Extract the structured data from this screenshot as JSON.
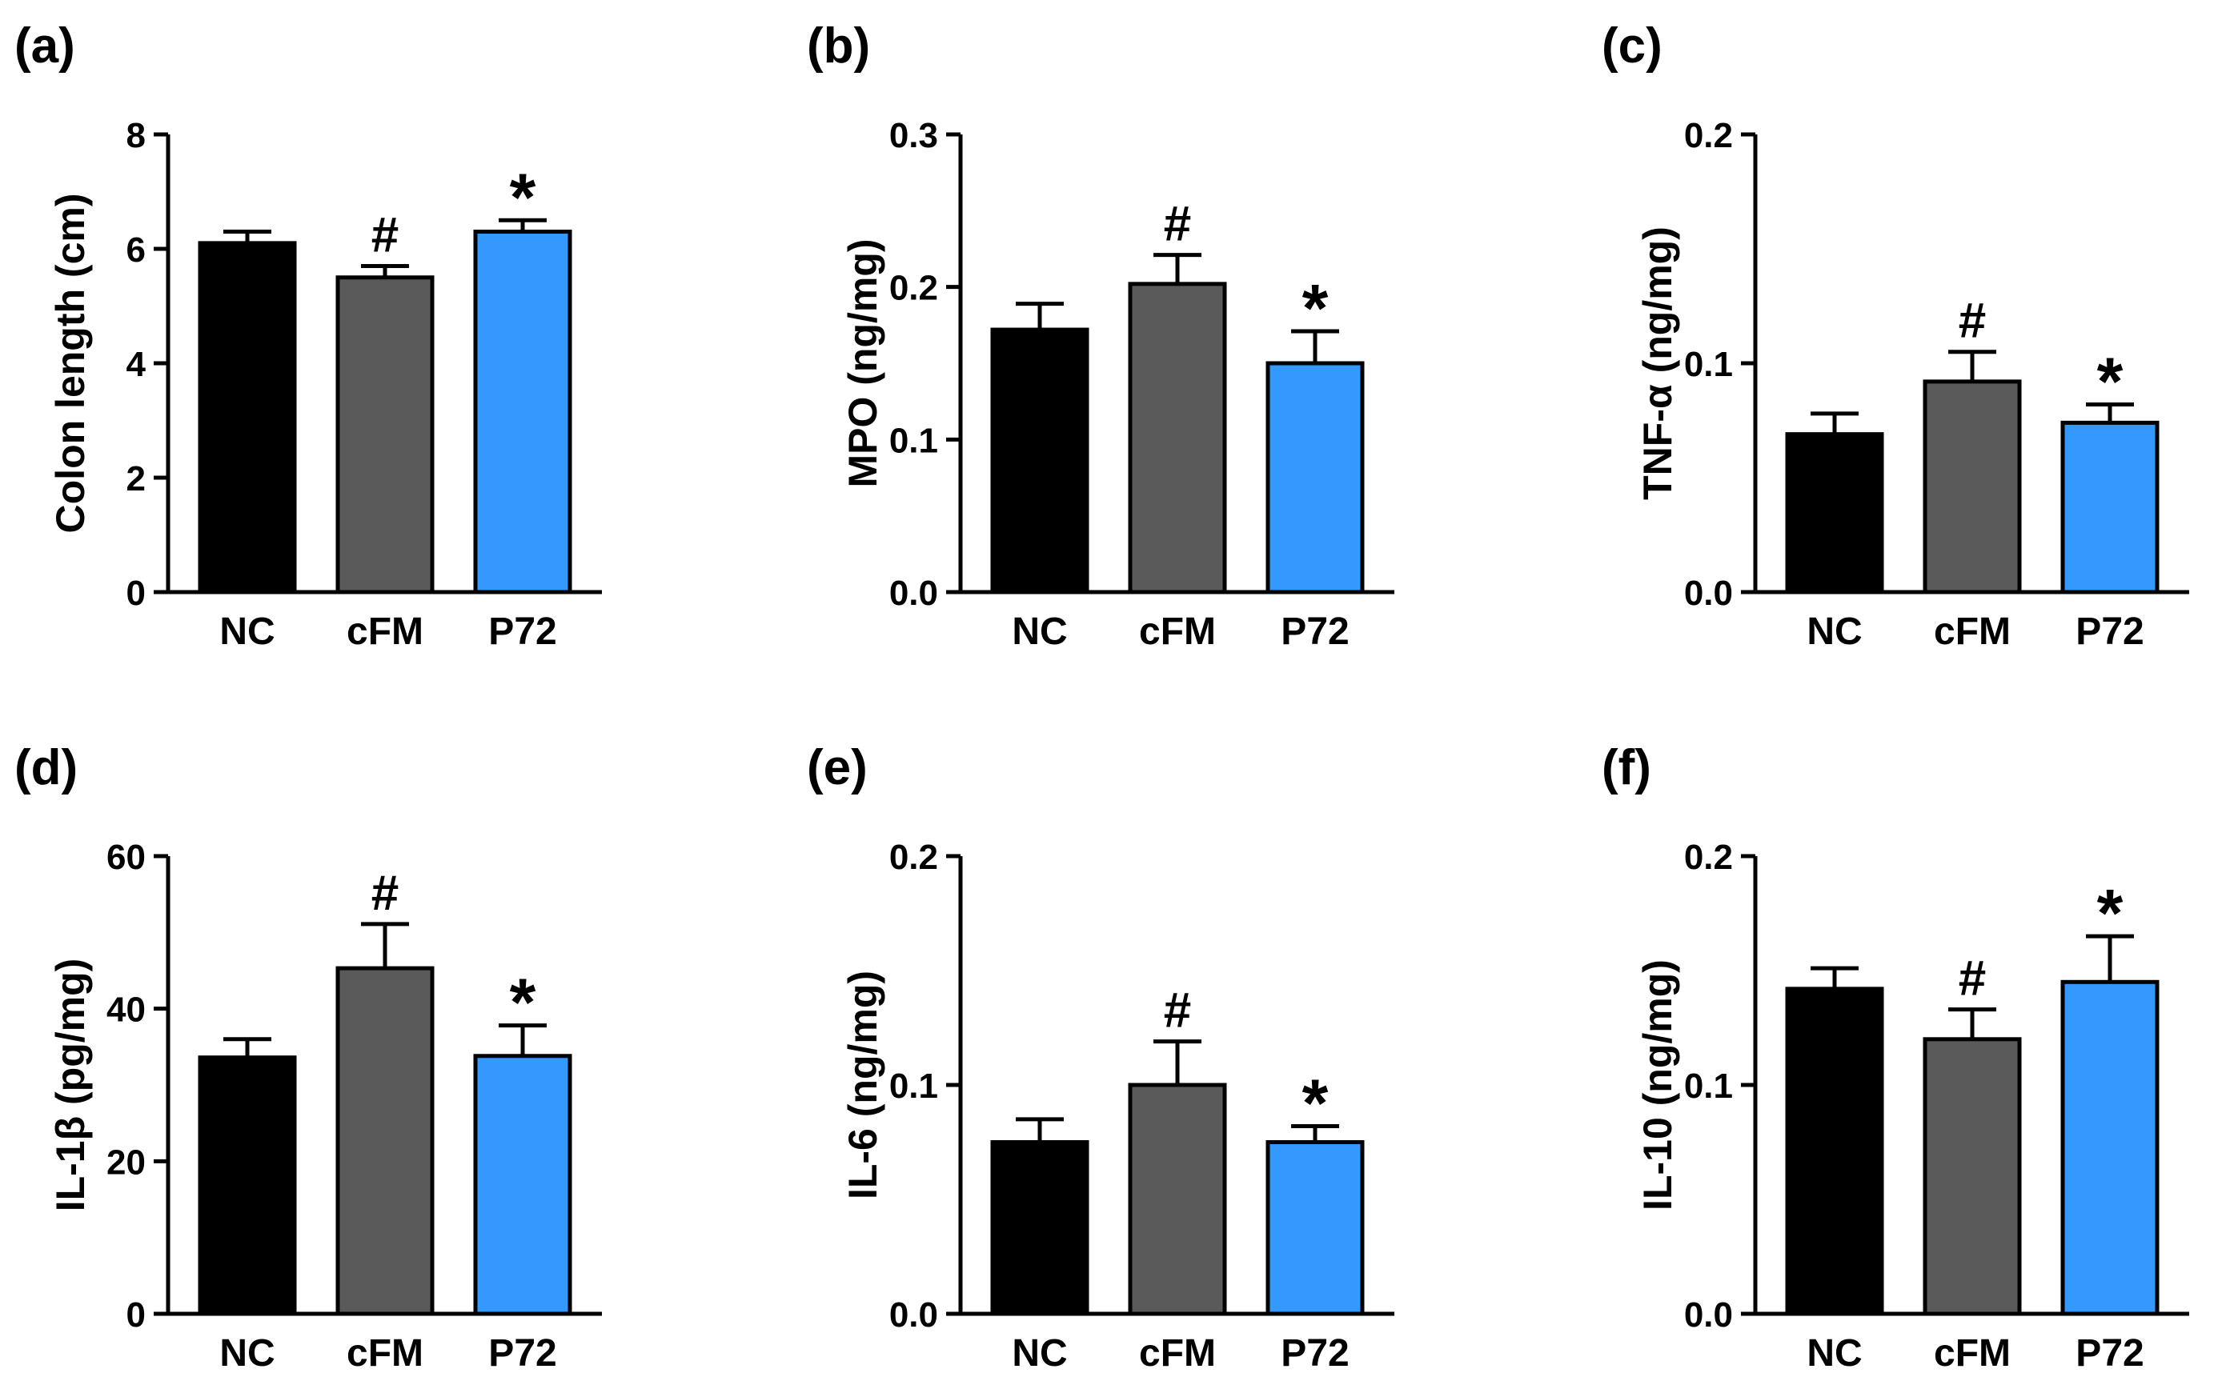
{
  "figure": {
    "background": "#ffffff"
  },
  "chart_data": [
    {
      "panel": "(a)",
      "type": "bar",
      "categories": [
        "NC",
        "cFM",
        "P72"
      ],
      "colors": [
        "#000000",
        "#5a5a5a",
        "#3399ff"
      ],
      "values": [
        6.1,
        5.5,
        6.3
      ],
      "errors": [
        0.2,
        0.2,
        0.2
      ],
      "markers": [
        "",
        "#",
        "*"
      ],
      "ylabel": "Colon length (cm)",
      "ylim": [
        0,
        8
      ],
      "yticks": [
        "0",
        "2",
        "4",
        "6",
        "8"
      ]
    },
    {
      "panel": "(b)",
      "type": "bar",
      "categories": [
        "NC",
        "cFM",
        "P72"
      ],
      "colors": [
        "#000000",
        "#5a5a5a",
        "#3399ff"
      ],
      "values": [
        0.172,
        0.202,
        0.15
      ],
      "errors": [
        0.017,
        0.019,
        0.021
      ],
      "markers": [
        "",
        "#",
        "*"
      ],
      "ylabel": "MPO (ng/mg)",
      "ylim": [
        0,
        0.3
      ],
      "yticks": [
        "0.0",
        "0.1",
        "0.2",
        "0.3"
      ]
    },
    {
      "panel": "(c)",
      "type": "bar",
      "categories": [
        "NC",
        "cFM",
        "P72"
      ],
      "colors": [
        "#000000",
        "#5a5a5a",
        "#3399ff"
      ],
      "values": [
        0.069,
        0.092,
        0.074
      ],
      "errors": [
        0.009,
        0.013,
        0.008
      ],
      "markers": [
        "",
        "#",
        "*"
      ],
      "ylabel": "TNF-α (ng/mg)",
      "ylim": [
        0,
        0.2
      ],
      "yticks": [
        "0.0",
        "0.1",
        "0.2"
      ]
    },
    {
      "panel": "(d)",
      "type": "bar",
      "categories": [
        "NC",
        "cFM",
        "P72"
      ],
      "colors": [
        "#000000",
        "#5a5a5a",
        "#3399ff"
      ],
      "values": [
        33.6,
        45.3,
        33.8
      ],
      "errors": [
        2.4,
        5.8,
        4.0
      ],
      "markers": [
        "",
        "#",
        "*"
      ],
      "ylabel": "IL-1β (pg/mg)",
      "ylim": [
        0,
        60
      ],
      "yticks": [
        "0",
        "20",
        "40",
        "60"
      ]
    },
    {
      "panel": "(e)",
      "type": "bar",
      "categories": [
        "NC",
        "cFM",
        "P72"
      ],
      "colors": [
        "#000000",
        "#5a5a5a",
        "#3399ff"
      ],
      "values": [
        0.075,
        0.1,
        0.075
      ],
      "errors": [
        0.01,
        0.019,
        0.007
      ],
      "markers": [
        "",
        "#",
        "*"
      ],
      "ylabel": "IL-6 (ng/mg)",
      "ylim": [
        0,
        0.2
      ],
      "yticks": [
        "0.0",
        "0.1",
        "0.2"
      ]
    },
    {
      "panel": "(f)",
      "type": "bar",
      "categories": [
        "NC",
        "cFM",
        "P72"
      ],
      "colors": [
        "#000000",
        "#5a5a5a",
        "#3399ff"
      ],
      "values": [
        0.142,
        0.12,
        0.145
      ],
      "errors": [
        0.009,
        0.013,
        0.02
      ],
      "markers": [
        "",
        "#",
        "*"
      ],
      "ylabel": "IL-10 (ng/mg)",
      "ylim": [
        0,
        0.2
      ],
      "yticks": [
        "0.0",
        "0.1",
        "0.2"
      ]
    }
  ]
}
